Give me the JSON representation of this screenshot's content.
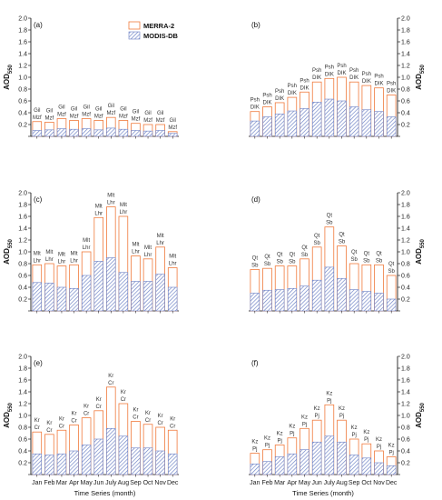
{
  "figure": {
    "months": [
      "Jan",
      "Feb",
      "Mar",
      "Apr",
      "May",
      "Jun",
      "July",
      "Aug",
      "Sep",
      "Oct",
      "Nov",
      "Dec"
    ],
    "xlabel": "Time Series (month)",
    "ylabel_base": "AOD",
    "ylabel_sub": "550",
    "legend": {
      "merra": "MERRA-2",
      "modis": "MODIS-DB"
    },
    "colors": {
      "merra": "#f07a3c",
      "modis": "#6a7fc4"
    }
  },
  "chart_data": [
    {
      "type": "bar",
      "tag": "(a)",
      "categories": [
        "Jan",
        "Feb",
        "Mar",
        "Apr",
        "May",
        "Jun",
        "July",
        "Aug",
        "Sep",
        "Oct",
        "Nov",
        "Dec"
      ],
      "ylim": [
        0,
        2.0
      ],
      "series": [
        {
          "name": "MERRA-2",
          "values": [
            0.25,
            0.24,
            0.3,
            0.27,
            0.3,
            0.27,
            0.32,
            0.27,
            0.22,
            0.2,
            0.2,
            0.08
          ]
        },
        {
          "name": "MODIS-DB",
          "values": [
            0.1,
            0.11,
            0.13,
            0.12,
            0.13,
            0.11,
            0.14,
            0.12,
            0.1,
            0.09,
            0.1,
            0.05
          ]
        }
      ],
      "bar_labels": [
        [
          "Mzf",
          "Gil"
        ],
        [
          "Mzf",
          "Gil"
        ],
        [
          "Mzf",
          "Gil"
        ],
        [
          "Mzf",
          "Gil"
        ],
        [
          "Mzf",
          "Gil"
        ],
        [
          "Mzf",
          "Gil"
        ],
        [
          "Mzf",
          "Gil"
        ],
        [
          "Mzf",
          "Gil"
        ],
        [
          "Mzf",
          "Gil"
        ],
        [
          "Mzf",
          "Gil"
        ],
        [
          "Mzf",
          "Gil"
        ],
        [
          "Mzf",
          "Gil"
        ]
      ]
    },
    {
      "type": "bar",
      "tag": "(b)",
      "categories": [
        "Jan",
        "Feb",
        "Mar",
        "Apr",
        "May",
        "Jun",
        "July",
        "Aug",
        "Sep",
        "Oct",
        "Nov",
        "Dec"
      ],
      "ylim": [
        0,
        2.0
      ],
      "series": [
        {
          "name": "MERRA-2",
          "values": [
            0.42,
            0.5,
            0.57,
            0.66,
            0.75,
            0.92,
            0.98,
            1.0,
            0.92,
            0.86,
            0.82,
            0.7
          ]
        },
        {
          "name": "MODIS-DB",
          "values": [
            0.26,
            0.33,
            0.38,
            0.43,
            0.47,
            0.58,
            0.63,
            0.6,
            0.5,
            0.45,
            0.42,
            0.33
          ]
        }
      ],
      "bar_labels": [
        [
          "DIK",
          "Psh"
        ],
        [
          "DIK",
          "Psh"
        ],
        [
          "DIK",
          "Psh"
        ],
        [
          "DIK",
          "Psh"
        ],
        [
          "DIK",
          "Psh"
        ],
        [
          "DIK",
          "Psh"
        ],
        [
          "DIK",
          "Psh"
        ],
        [
          "DIK",
          "Psh"
        ],
        [
          "DIK",
          "Psh"
        ],
        [
          "DIK",
          "Psh"
        ],
        [
          "DIK",
          "Psh"
        ],
        [
          "DIK",
          "Psh"
        ]
      ]
    },
    {
      "type": "bar",
      "tag": "(c)",
      "categories": [
        "Jan",
        "Feb",
        "Mar",
        "Apr",
        "May",
        "Jun",
        "July",
        "Aug",
        "Sep",
        "Oct",
        "Nov",
        "Dec"
      ],
      "ylim": [
        0,
        2.0
      ],
      "series": [
        {
          "name": "MERRA-2",
          "values": [
            0.78,
            0.8,
            0.76,
            0.78,
            1.0,
            1.58,
            1.76,
            1.6,
            0.93,
            0.88,
            1.08,
            0.73
          ]
        },
        {
          "name": "MODIS-DB",
          "values": [
            0.48,
            0.47,
            0.4,
            0.38,
            0.6,
            0.84,
            0.9,
            0.65,
            0.5,
            0.5,
            0.62,
            0.4
          ]
        }
      ],
      "bar_labels": [
        [
          "Lhr",
          "Mlt"
        ],
        [
          "Lhr",
          "Mlt"
        ],
        [
          "Lhr",
          "Mlt"
        ],
        [
          "Lhr",
          "Mlt"
        ],
        [
          "Lhr",
          "Mlt"
        ],
        [
          "Lhr",
          "Mlt"
        ],
        [
          "Lhr",
          "Mlt"
        ],
        [
          "Lhr",
          "Mlt"
        ],
        [
          "Lhr",
          "Mlt"
        ],
        [
          "Lhr",
          "Mlt"
        ],
        [
          "Lhr",
          "Mlt"
        ],
        [
          "Lhr",
          "Mlt"
        ]
      ]
    },
    {
      "type": "bar",
      "tag": "(d)",
      "categories": [
        "Jan",
        "Feb",
        "Mar",
        "Apr",
        "May",
        "Jun",
        "July",
        "Aug",
        "Sep",
        "Oct",
        "Nov",
        "Dec"
      ],
      "ylim": [
        0,
        2.0
      ],
      "series": [
        {
          "name": "MERRA-2",
          "values": [
            0.7,
            0.72,
            0.76,
            0.76,
            0.88,
            1.08,
            1.42,
            1.1,
            0.8,
            0.78,
            0.78,
            0.6
          ]
        },
        {
          "name": "MODIS-DB",
          "values": [
            0.3,
            0.35,
            0.36,
            0.38,
            0.42,
            0.52,
            0.74,
            0.55,
            0.36,
            0.33,
            0.3,
            0.2
          ]
        }
      ],
      "bar_labels": [
        [
          "Sb",
          "Qt"
        ],
        [
          "Sb",
          "Qt"
        ],
        [
          "Sb",
          "Qt"
        ],
        [
          "Sb",
          "Qt"
        ],
        [
          "Sb",
          "Qt"
        ],
        [
          "Sb",
          "Qt"
        ],
        [
          "Sb",
          "Qt"
        ],
        [
          "Sb",
          "Qt"
        ],
        [
          "Sb",
          "Qt"
        ],
        [
          "Sb",
          "Qt"
        ],
        [
          "Sb",
          "Qt"
        ],
        [
          "Sb",
          "Qt"
        ]
      ]
    },
    {
      "type": "bar",
      "tag": "(e)",
      "categories": [
        "Jan",
        "Feb",
        "Mar",
        "Apr",
        "May",
        "Jun",
        "July",
        "Aug",
        "Sep",
        "Oct",
        "Nov",
        "Dec"
      ],
      "ylim": [
        0,
        2.0
      ],
      "series": [
        {
          "name": "MERRA-2",
          "values": [
            0.72,
            0.68,
            0.75,
            0.84,
            0.96,
            1.08,
            1.48,
            1.2,
            0.9,
            0.85,
            0.8,
            0.75
          ]
        },
        {
          "name": "MODIS-DB",
          "values": [
            0.35,
            0.33,
            0.35,
            0.4,
            0.5,
            0.6,
            0.78,
            0.65,
            0.45,
            0.45,
            0.4,
            0.35
          ]
        }
      ],
      "bar_labels": [
        [
          "Cr",
          "Kr"
        ],
        [
          "Cr",
          "Kr"
        ],
        [
          "Cr",
          "Kr"
        ],
        [
          "Cr",
          "Kr"
        ],
        [
          "Cr",
          "Kr"
        ],
        [
          "Cr",
          "Kr"
        ],
        [
          "Cr",
          "Kr"
        ],
        [
          "Cr",
          "Kr"
        ],
        [
          "Cr",
          "Kr"
        ],
        [
          "Cr",
          "Kr"
        ],
        [
          "Cr",
          "Kr"
        ],
        [
          "Cr",
          "Kr"
        ]
      ]
    },
    {
      "type": "bar",
      "tag": "(f)",
      "categories": [
        "Jan",
        "Feb",
        "Mar",
        "Apr",
        "May",
        "Jun",
        "July",
        "Aug",
        "Sep",
        "Oct",
        "Nov",
        "Dec"
      ],
      "ylim": [
        0,
        2.0
      ],
      "series": [
        {
          "name": "MERRA-2",
          "values": [
            0.36,
            0.42,
            0.5,
            0.62,
            0.78,
            0.92,
            1.18,
            0.92,
            0.6,
            0.52,
            0.4,
            0.3
          ]
        },
        {
          "name": "MODIS-DB",
          "values": [
            0.18,
            0.22,
            0.3,
            0.35,
            0.42,
            0.55,
            0.65,
            0.55,
            0.33,
            0.28,
            0.2,
            0.15
          ]
        }
      ],
      "bar_labels": [
        [
          "Pj",
          "Kz"
        ],
        [
          "Pj",
          "Kz"
        ],
        [
          "Pj",
          "Kz"
        ],
        [
          "Pj",
          "Kz"
        ],
        [
          "Pj",
          "Kz"
        ],
        [
          "Pj",
          "Kz"
        ],
        [
          "Pj",
          "Kz"
        ],
        [
          "Pj",
          "Kz"
        ],
        [
          "Pj",
          "Kz"
        ],
        [
          "Pj",
          "Kz"
        ],
        [
          "Pj",
          "Kz"
        ],
        [
          "Pj",
          "Kz"
        ]
      ]
    }
  ]
}
